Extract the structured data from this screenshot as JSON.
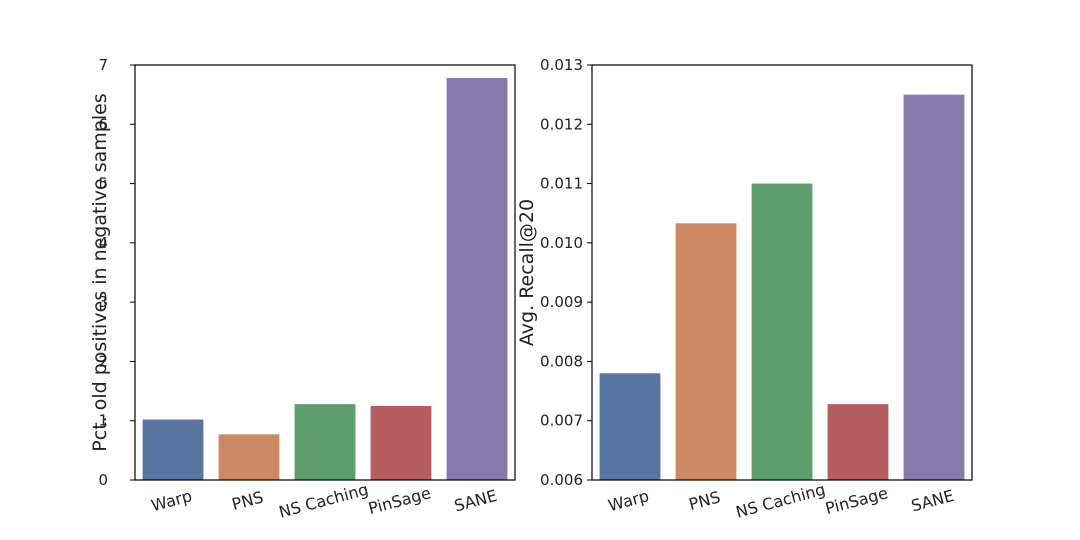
{
  "chart_data": [
    {
      "type": "bar",
      "categories": [
        "Warp",
        "PNS",
        "NS Caching",
        "PinSage",
        "SANE"
      ],
      "values": [
        1.02,
        0.77,
        1.28,
        1.25,
        6.78
      ],
      "colors": [
        "#5975a4",
        "#cc8963",
        "#5f9e6e",
        "#b55d60",
        "#857aab"
      ],
      "title": "",
      "xlabel": "",
      "ylabel": "Pct. old positives in negative samples",
      "ylim": [
        0,
        7
      ],
      "yticks": [
        0,
        1,
        2,
        3,
        4,
        5,
        6,
        7
      ],
      "ytick_labels": [
        "0",
        "1",
        "2",
        "3",
        "4",
        "5",
        "6",
        "7"
      ],
      "grid": false
    },
    {
      "type": "bar",
      "categories": [
        "Warp",
        "PNS",
        "NS Caching",
        "PinSage",
        "SANE"
      ],
      "values": [
        0.0078,
        0.01033,
        0.011,
        0.00728,
        0.0125
      ],
      "colors": [
        "#5975a4",
        "#cc8963",
        "#5f9e6e",
        "#b55d60",
        "#857aab"
      ],
      "title": "",
      "xlabel": "",
      "ylabel": "Avg. Recall@20",
      "ylim": [
        0.006,
        0.013
      ],
      "yticks": [
        0.006,
        0.007,
        0.008,
        0.009,
        0.01,
        0.011,
        0.012,
        0.013
      ],
      "ytick_labels": [
        "0.006",
        "0.007",
        "0.008",
        "0.009",
        "0.010",
        "0.011",
        "0.012",
        "0.013"
      ],
      "grid": false
    }
  ]
}
